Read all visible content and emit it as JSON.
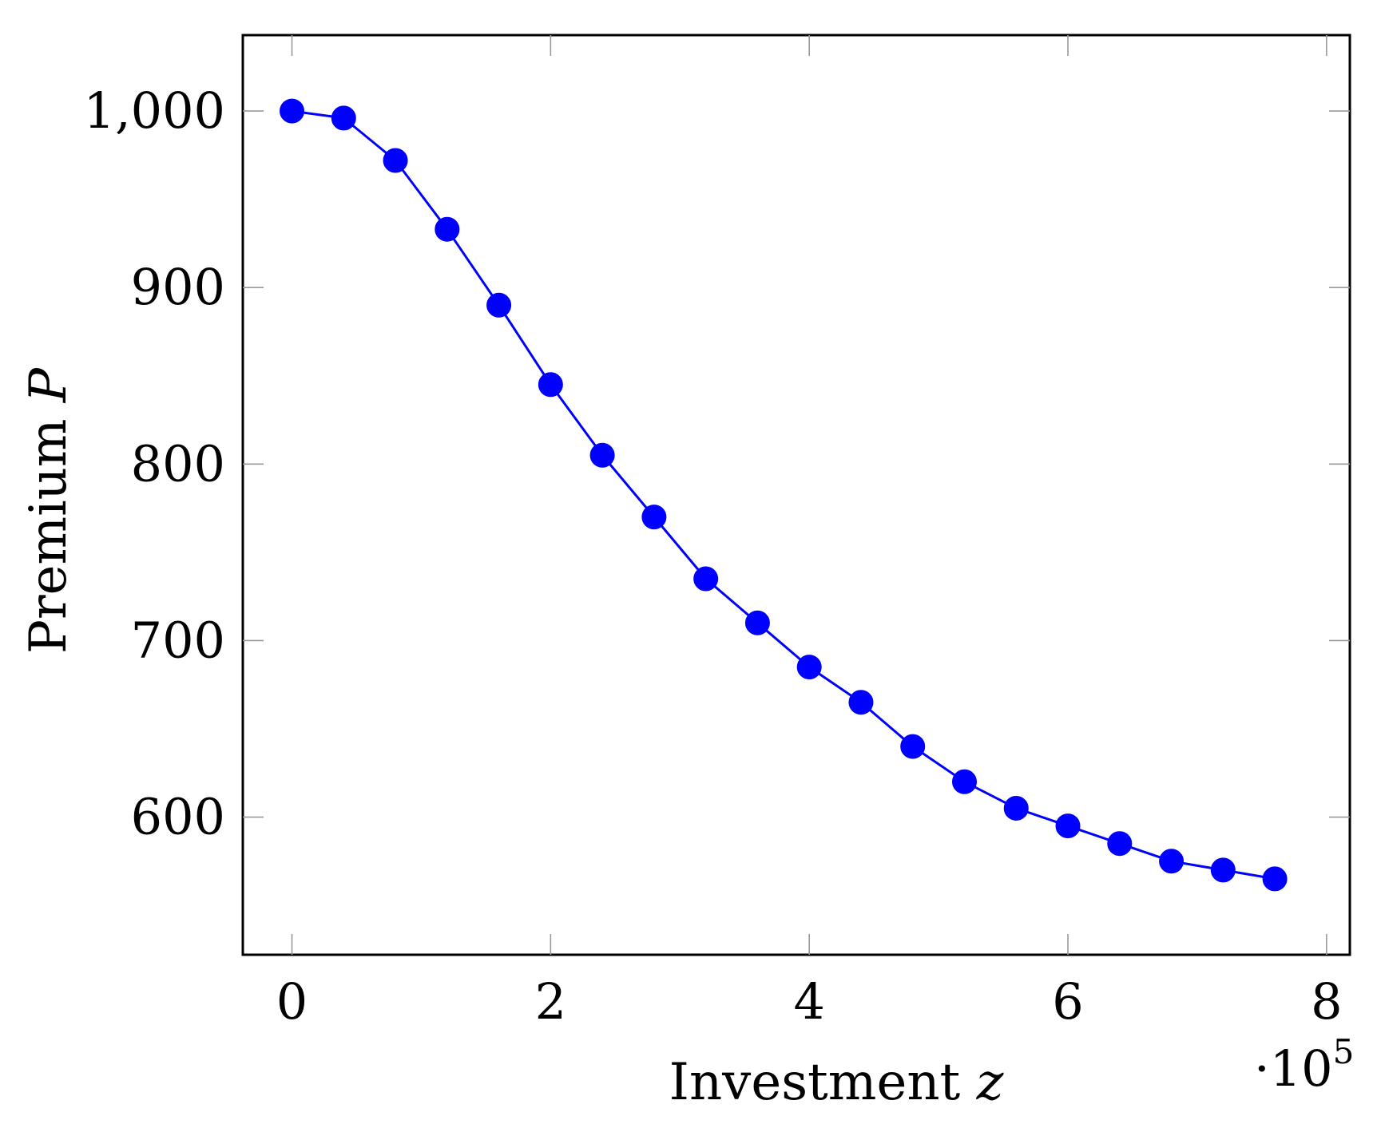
{
  "chart_data": {
    "type": "line",
    "xlabel": "Investment",
    "xlabel_var": "z",
    "ylabel": "Premium",
    "ylabel_var": "P",
    "x_scale_label": {
      "base": "·10",
      "exponent": "5"
    },
    "xlim": [
      -0.38,
      8.18
    ],
    "ylim": [
      522,
      1043
    ],
    "x_ticks": [
      0,
      2,
      4,
      6,
      8
    ],
    "x_tick_labels": [
      "0",
      "2",
      "4",
      "6",
      "8"
    ],
    "y_ticks": [
      600,
      700,
      800,
      900,
      1000
    ],
    "y_tick_labels": [
      "600",
      "700",
      "800",
      "900",
      "1,000"
    ],
    "grid": false,
    "series": [
      {
        "color": "#0000ff",
        "marker": "circle",
        "x": [
          0,
          0.4,
          0.8,
          1.2,
          1.6,
          2.0,
          2.4,
          2.8,
          3.2,
          3.6,
          4.0,
          4.4,
          4.8,
          5.2,
          5.6,
          6.0,
          6.4,
          6.8,
          7.2,
          7.6
        ],
        "y": [
          1000,
          996,
          972,
          933,
          890,
          845,
          805,
          770,
          735,
          710,
          685,
          665,
          640,
          620,
          605,
          595,
          585,
          575,
          570,
          565
        ]
      }
    ]
  }
}
